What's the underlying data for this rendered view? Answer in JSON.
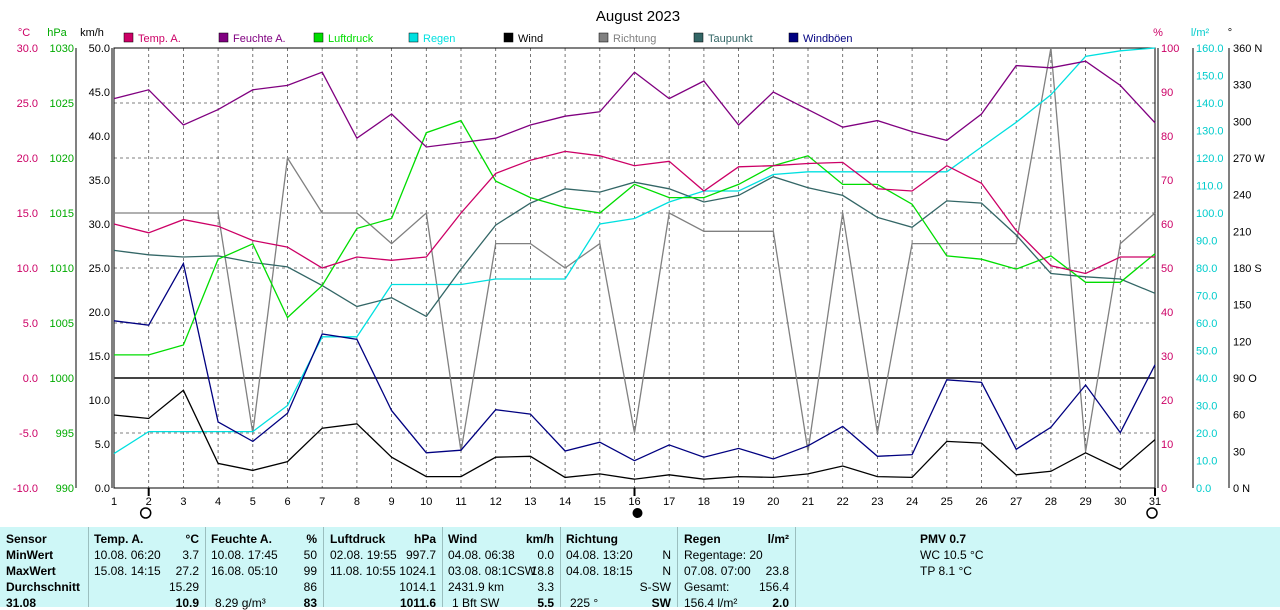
{
  "chart_data": {
    "type": "line",
    "title": "August 2023",
    "x": [
      1,
      2,
      3,
      4,
      5,
      6,
      7,
      8,
      9,
      10,
      11,
      12,
      13,
      14,
      15,
      16,
      17,
      18,
      19,
      20,
      21,
      22,
      23,
      24,
      25,
      26,
      27,
      28,
      29,
      30,
      31
    ],
    "axes": {
      "temp": {
        "unit": "°C",
        "range": [
          -10,
          30
        ],
        "ticks": [
          "30.0",
          "25.0",
          "20.0",
          "15.0",
          "10.0",
          "5.0",
          "0.0",
          "-5.0",
          "-10.0"
        ]
      },
      "pressure": {
        "unit": "hPa",
        "range": [
          990,
          1030
        ],
        "ticks": [
          "1030",
          "1025",
          "1020",
          "1015",
          "1010",
          "1005",
          "1000",
          "995",
          "990"
        ]
      },
      "wind": {
        "unit": "km/h",
        "range": [
          0,
          50
        ],
        "ticks": [
          "50.0",
          "45.0",
          "40.0",
          "35.0",
          "30.0",
          "25.0",
          "20.0",
          "15.0",
          "10.0",
          "5.0",
          "0.0"
        ]
      },
      "humidity": {
        "unit": "%",
        "range": [
          0,
          100
        ],
        "ticks": [
          "100",
          "90",
          "80",
          "70",
          "60",
          "50",
          "40",
          "30",
          "20",
          "10",
          "0"
        ]
      },
      "rain": {
        "unit": "l/m²",
        "range": [
          0,
          160
        ],
        "ticks": [
          "160.0",
          "150.0",
          "140.0",
          "130.0",
          "120.0",
          "110.0",
          "100.0",
          "90.0",
          "80.0",
          "70.0",
          "60.0",
          "50.0",
          "40.0",
          "30.0",
          "20.0",
          "10.0",
          "0.0"
        ]
      },
      "direction": {
        "unit": "°",
        "range": [
          0,
          360
        ],
        "ticks": [
          "360 N",
          "330",
          "300",
          "270 W",
          "240",
          "210",
          "180 S",
          "150",
          "120",
          "90 O",
          "60",
          "30",
          "0 N"
        ]
      }
    },
    "series": [
      {
        "name": "Temp. A.",
        "axis": "temp",
        "color": "#cc0066",
        "values": [
          14.0,
          13.2,
          14.4,
          13.8,
          12.5,
          11.9,
          10.0,
          11.0,
          10.7,
          11.0,
          15.0,
          18.6,
          19.8,
          20.6,
          20.2,
          19.3,
          19.7,
          17.0,
          19.2,
          19.3,
          19.5,
          19.6,
          17.2,
          17.0,
          19.3,
          17.7,
          13.4,
          10.2,
          9.5,
          11.0,
          11.0
        ]
      },
      {
        "name": "Feuchte A.",
        "axis": "humidity",
        "color": "#800080",
        "values": [
          88.5,
          90.5,
          82.5,
          86,
          90.5,
          91.5,
          94.5,
          79.5,
          85,
          77.5,
          78.5,
          79.5,
          82.5,
          84.5,
          85.5,
          94.5,
          88.5,
          92.5,
          82.5,
          90,
          86,
          82,
          83.5,
          81,
          79,
          85,
          96,
          95.5,
          97,
          91.5,
          83
        ]
      },
      {
        "name": "Luftdruck",
        "axis": "pressure",
        "color": "#00dd00",
        "values": [
          1002.1,
          1002.1,
          1003.0,
          1010.8,
          1012.2,
          1005.5,
          1008.4,
          1013.6,
          1014.5,
          1022.3,
          1023.4,
          1017.9,
          1016.4,
          1015.5,
          1015.0,
          1017.6,
          1016.4,
          1016.4,
          1017.6,
          1019.3,
          1020.2,
          1017.6,
          1017.6,
          1015.8,
          1011.1,
          1010.8,
          1009.9,
          1011.1,
          1008.7,
          1008.7,
          1011.3
        ]
      },
      {
        "name": "Regen",
        "axis": "rain",
        "color": "#00e0e0",
        "values": [
          12.5,
          20.5,
          20.5,
          20.5,
          20.5,
          30,
          55,
          55,
          74,
          74,
          74,
          76,
          76,
          76,
          96,
          98,
          104,
          108,
          108,
          114,
          115,
          115,
          115,
          115,
          115,
          124,
          133,
          143,
          157,
          159,
          160
        ]
      },
      {
        "name": "Wind",
        "axis": "wind",
        "color": "#000000",
        "values": [
          8.3,
          7.9,
          11.1,
          2.8,
          2.0,
          3.0,
          6.8,
          7.3,
          3.5,
          1.3,
          1.3,
          3.5,
          3.6,
          1.2,
          1.6,
          1.0,
          1.5,
          1.0,
          1.3,
          1.2,
          1.6,
          2.5,
          1.3,
          1.2,
          5.3,
          5.1,
          1.5,
          1.9,
          4.0,
          2.1,
          5.5
        ]
      },
      {
        "name": "Richtung",
        "axis": "direction",
        "color": "#808080",
        "values": [
          225,
          225,
          225,
          225,
          45,
          270,
          225,
          225,
          200,
          225,
          30,
          200,
          200,
          180,
          200,
          45,
          225,
          210,
          210,
          210,
          30,
          225,
          45,
          200,
          200,
          200,
          200,
          360,
          30,
          200,
          225
        ]
      },
      {
        "name": "Taupunkt",
        "axis": "temp",
        "color": "#336666",
        "values": [
          11.6,
          11.2,
          11.0,
          11.1,
          10.5,
          10.1,
          8.4,
          6.5,
          7.3,
          5.6,
          9.9,
          13.9,
          15.9,
          17.2,
          16.9,
          17.8,
          17.2,
          16.0,
          16.6,
          18.3,
          17.3,
          16.6,
          14.6,
          13.7,
          16.1,
          15.9,
          13.0,
          9.5,
          9.2,
          9.0,
          7.7
        ]
      },
      {
        "name": "Windböen",
        "axis": "wind",
        "color": "#000080",
        "values": [
          19.0,
          18.5,
          25.5,
          7.5,
          5.3,
          8.5,
          17.5,
          16.9,
          8.8,
          4.0,
          4.3,
          8.9,
          8.4,
          4.2,
          5.2,
          3.1,
          4.9,
          3.5,
          4.5,
          3.3,
          4.8,
          7.0,
          3.6,
          3.8,
          12.3,
          12.0,
          4.4,
          6.9,
          11.7,
          6.3,
          14.0
        ]
      }
    ],
    "moon_markers": [
      {
        "day": 2,
        "symbol": "O"
      },
      {
        "day": 16,
        "symbol": "●"
      },
      {
        "day": 31,
        "symbol": "O"
      }
    ],
    "grid": true,
    "legend": "top"
  },
  "stats": {
    "sensor": {
      "title": "Sensor",
      "rows": [
        "MinWert",
        "MaxWert",
        "Durchschnitt",
        "31.08"
      ]
    },
    "temp": {
      "title": "Temp. A.",
      "unit": "°C",
      "min_time": "10.08.  06:20",
      "min": "3.7",
      "max_time": "15.08.  14:15",
      "max": "27.2",
      "avg": "15.29",
      "current": "10.9"
    },
    "humidity": {
      "title": "Feuchte A.",
      "unit": "%",
      "min_time": "10.08.  17:45",
      "min": "50",
      "max_time": "16.08.  05:10",
      "max": "99",
      "avg": "86",
      "current_extra": "8.29 g/m³",
      "current": "83"
    },
    "pressure": {
      "title": "Luftdruck",
      "unit": "hPa",
      "min_time": "02.08.  19:55",
      "min": "997.7",
      "max_time": "11.08.  10:55",
      "max": "1024.1",
      "avg": "1014.1",
      "current": "1011.6"
    },
    "wind": {
      "title": "Wind",
      "unit": "km/h",
      "min_time": "04.08.  06:38",
      "min": "0.0",
      "max_time": "03.08.  08:1CSW",
      "max": "18.8",
      "avg_extra": "2431.9 km",
      "avg": "3.3",
      "current_extra": "1 Bft SW",
      "current": "5.5"
    },
    "direction": {
      "title": "Richtung",
      "min_time": "04.08.  13:20",
      "min": "N",
      "max_time": "04.08.  18:15",
      "max": "N",
      "avg": "S-SW",
      "current_extra": "225 °",
      "current": "SW"
    },
    "rain": {
      "title": "Regen",
      "unit": "l/m²",
      "row1": "Regentage: 20",
      "row2_time": "07.08.  07:00",
      "row2": "23.8",
      "row3_label": "Gesamt:",
      "row3": "156.4",
      "row4_extra": "156.4 l/m²",
      "row4": "2.0"
    },
    "pmv": {
      "title": "PMV 0.7",
      "wc": "WC 10.5 °C",
      "tp": "TP 8.1 °C"
    }
  }
}
